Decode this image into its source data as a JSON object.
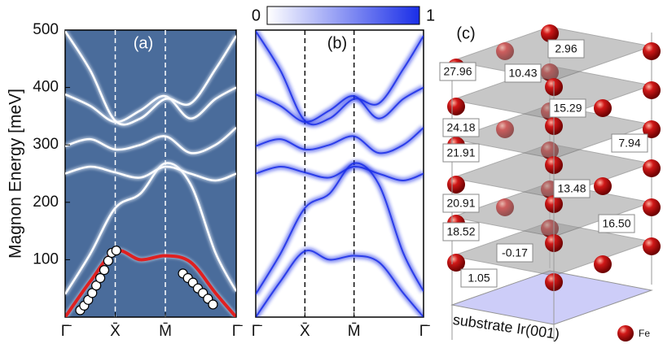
{
  "chart_data": [
    {
      "type": "line",
      "title": "(a)",
      "ylabel": "Magnon Energy [meV]",
      "background": "#4a6c9b",
      "ylim": [
        0,
        500
      ],
      "yticks": [
        100,
        200,
        300,
        400,
        500
      ],
      "xlim": [
        0,
        3.414
      ],
      "xticks": [
        {
          "value": 0,
          "label": "Γ̄"
        },
        {
          "value": 1,
          "label": "X̄"
        },
        {
          "value": 2,
          "label": "M̄"
        },
        {
          "value": 3.414,
          "label": "Γ̄"
        }
      ],
      "x": [
        0,
        0.5,
        1,
        1.5,
        2,
        2.5,
        3,
        3.414
      ],
      "series": [
        {
          "color": "#ffffff",
          "values": [
            40,
            110,
            190,
            215,
            268,
            232,
            112,
            45
          ]
        },
        {
          "color": "#ffffff",
          "values": [
            250,
            262,
            252,
            243,
            262,
            250,
            238,
            250
          ]
        },
        {
          "color": "#ffffff",
          "values": [
            298,
            310,
            292,
            300,
            315,
            286,
            300,
            330
          ]
        },
        {
          "color": "#ffffff",
          "values": [
            388,
            368,
            340,
            360,
            385,
            346,
            380,
            400
          ]
        },
        {
          "color": "#ffffff",
          "values": [
            498,
            430,
            342,
            346,
            380,
            372,
            432,
            490
          ]
        },
        {
          "color": "#ffffff",
          "values": [
            0,
            62,
            115,
            100,
            107,
            96,
            42,
            0
          ]
        },
        {
          "color": "#e02020",
          "values": [
            0,
            62,
            115,
            100,
            107,
            96,
            42,
            0
          ]
        }
      ],
      "points": {
        "x": [
          0.3,
          0.38,
          0.46,
          0.54,
          0.62,
          0.7,
          0.78,
          0.86,
          0.93,
          1.02,
          2.35,
          2.45,
          2.55,
          2.65,
          2.75,
          2.85,
          2.95
        ],
        "values": [
          12,
          20,
          30,
          42,
          55,
          68,
          82,
          98,
          112,
          116,
          76,
          68,
          60,
          50,
          42,
          32,
          22
        ]
      }
    },
    {
      "type": "heatmap",
      "title": "(b)",
      "color": "#1a2ee8",
      "clim": [
        0,
        1
      ],
      "cticks": [
        0,
        1
      ],
      "ylim": [
        0,
        500
      ],
      "xlim": [
        0,
        3.414
      ],
      "xticks": [
        {
          "value": 0,
          "label": "Γ̄"
        },
        {
          "value": 1,
          "label": "X̄"
        },
        {
          "value": 2,
          "label": "M̄"
        },
        {
          "value": 3.414,
          "label": "Γ̄"
        }
      ],
      "x": [
        0,
        0.5,
        1,
        1.5,
        2,
        2.5,
        3,
        3.414
      ],
      "series": [
        {
          "values": [
            40,
            110,
            190,
            215,
            268,
            232,
            112,
            45
          ]
        },
        {
          "values": [
            250,
            262,
            252,
            243,
            262,
            250,
            238,
            250
          ]
        },
        {
          "values": [
            298,
            310,
            292,
            300,
            315,
            286,
            300,
            330
          ]
        },
        {
          "values": [
            388,
            368,
            340,
            360,
            385,
            346,
            380,
            400
          ]
        },
        {
          "values": [
            498,
            430,
            342,
            346,
            380,
            372,
            432,
            490
          ]
        },
        {
          "values": [
            0,
            62,
            115,
            100,
            107,
            96,
            42,
            0
          ]
        }
      ]
    }
  ],
  "diagram": {
    "title": "(c)",
    "substrate": "substrate Ir(001)",
    "legend": "Fe",
    "couplings": [
      "2.96",
      "27.96",
      "10.43",
      "15.29",
      "24.18",
      "21.91",
      "7.94",
      "13.48",
      "20.91",
      "16.50",
      "18.52",
      "-0.17",
      "1.05"
    ]
  }
}
